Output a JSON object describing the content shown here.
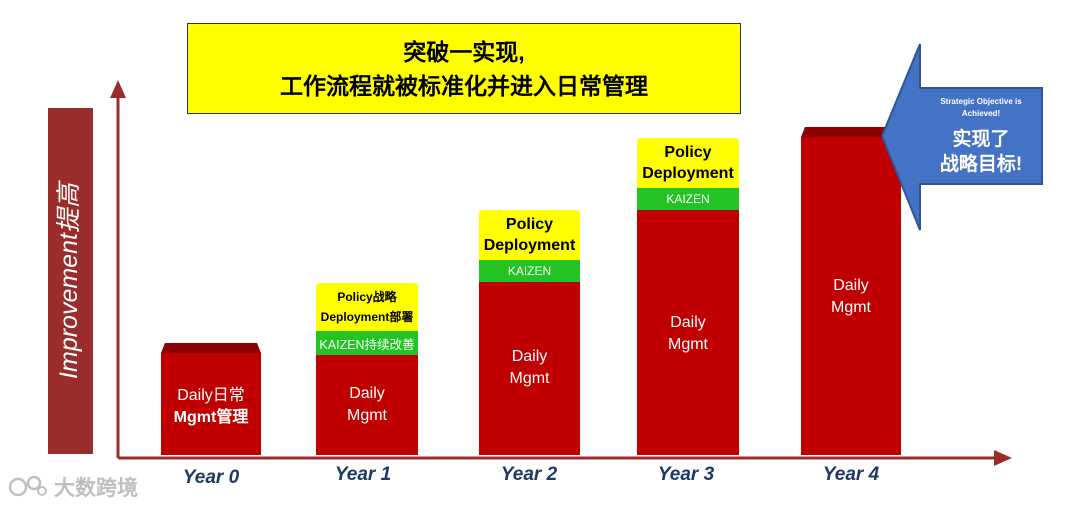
{
  "banner": {
    "line1": "突破一实现,",
    "line2": "工作流程就被标准化并进入日常管理"
  },
  "ylabel": "Improvement提高",
  "years": [
    "Year 0",
    "Year 1",
    "Year 2",
    "Year 3",
    "Year 4"
  ],
  "bar0": {
    "line1": "Daily日常",
    "line2": "Mgmt管理"
  },
  "bar1": {
    "policy1": "Policy战略",
    "policy2": "Deployment部署",
    "kaizen": "KAIZEN持续改善",
    "daily1": "Daily",
    "daily2": "Mgmt"
  },
  "bar2": {
    "policy1": "Policy",
    "policy2": "Deployment",
    "kaizen": "KAIZEN",
    "daily1": "Daily",
    "daily2": "Mgmt"
  },
  "bar3": {
    "policy1": "Policy",
    "policy2": "Deployment",
    "kaizen": "KAIZEN",
    "daily1": "Daily",
    "daily2": "Mgmt"
  },
  "bar4": {
    "daily1": "Daily",
    "daily2": "Mgmt"
  },
  "callout": {
    "en1": "Strategic Objective is",
    "en2": "Achieved!",
    "cn1": "实现了",
    "cn2": "战略目标!"
  },
  "logo": {
    "text": "大数跨境"
  },
  "colors": {
    "bar": "#c00000",
    "bar_top": "#8b0000",
    "banner": "#ffff00",
    "kaizen": "#22c322",
    "callout": "#4472c4",
    "axis": "#9b2c2c",
    "year_text": "#1f3864"
  }
}
